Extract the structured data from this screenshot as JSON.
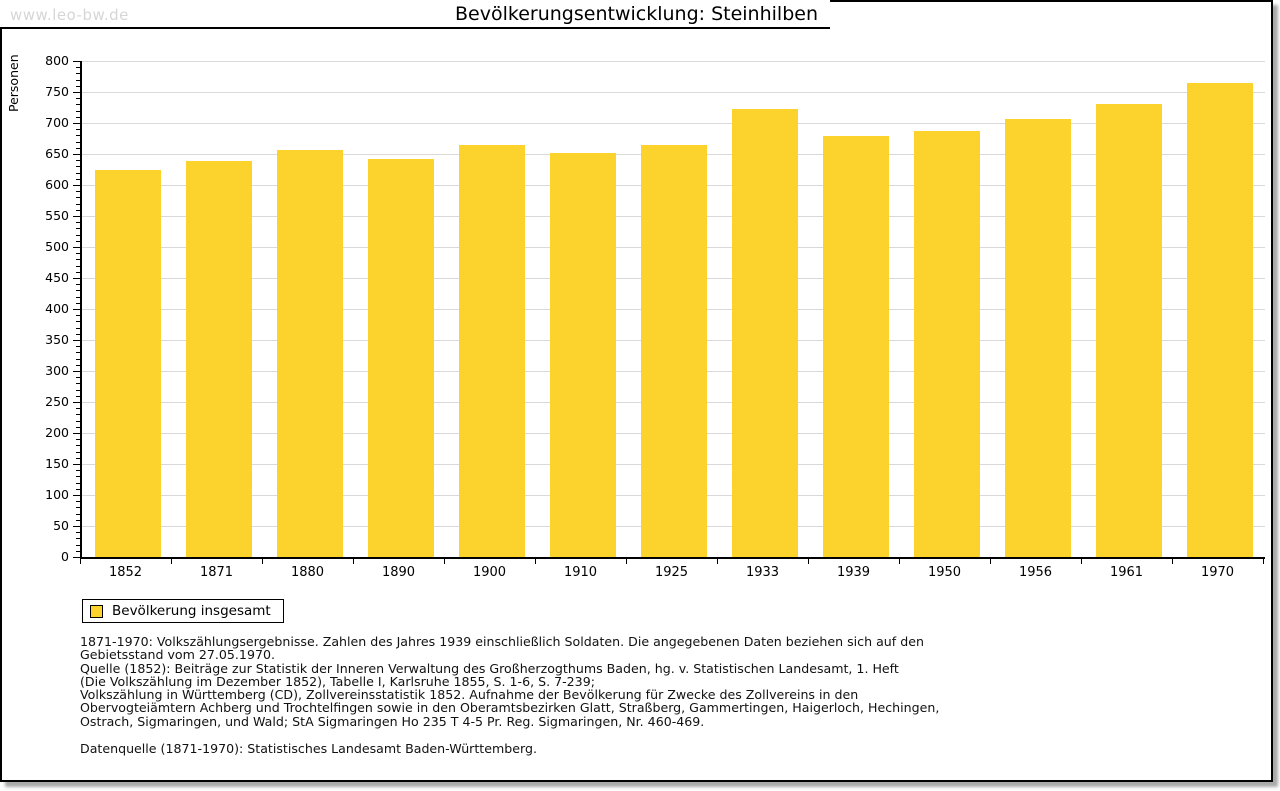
{
  "watermark": "www.leo-bw.de",
  "title": "Bevölkerungsentwicklung: Steinhilben",
  "chart_data": {
    "type": "bar",
    "title": "Bevölkerungsentwicklung: Steinhilben",
    "xlabel": "",
    "ylabel": "Personen",
    "categories": [
      "1852",
      "1871",
      "1880",
      "1890",
      "1900",
      "1910",
      "1925",
      "1933",
      "1939",
      "1950",
      "1956",
      "1961",
      "1970"
    ],
    "values": [
      624,
      639,
      656,
      642,
      665,
      652,
      665,
      723,
      679,
      687,
      707,
      730,
      765
    ],
    "ylim": [
      0,
      800
    ],
    "ytick_step": 50,
    "yminor_step": 10,
    "grid": true,
    "bar_color": "#fcd32d",
    "gridline_color": "#d9d9d9",
    "legend": {
      "label": "Bevölkerung insgesamt",
      "position": "bottom-left"
    }
  },
  "footer": {
    "notes": "1871-1970: Volkszählungsergebnisse. Zahlen des Jahres 1939 einschließlich Soldaten. Die angegebenen Daten beziehen sich auf den\nGebietsstand vom 27.05.1970.\nQuelle (1852): Beiträge zur Statistik der Inneren Verwaltung des Großherzogthums Baden, hg. v. Statistischen Landesamt, 1. Heft\n(Die Volkszählung im Dezember 1852), Tabelle I, Karlsruhe 1855, S. 1-6, S. 7-239;\nVolkszählung in Württemberg (CD), Zollvereinsstatistik 1852. Aufnahme der Bevölkerung für Zwecke des Zollvereins in den\nObervogteiämtern Achberg und Trochtelfingen sowie in den Oberamtsbezirken Glatt, Straßberg, Gammertingen, Haigerloch, Hechingen,\nOstrach, Sigmaringen, und Wald; StA Sigmaringen Ho 235 T 4-5 Pr. Reg. Sigmaringen, Nr. 460-469.",
    "datasource": "Datenquelle (1871-1970): Statistisches Landesamt Baden-Württemberg."
  }
}
